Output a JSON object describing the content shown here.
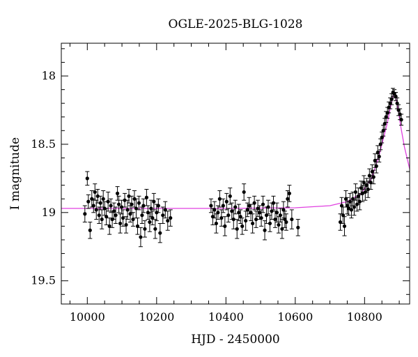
{
  "chart_data": {
    "type": "scatter",
    "title": "OGLE-2025-BLG-1028",
    "xlabel": "HJD - 2450000",
    "ylabel": "I magnitude",
    "xlim": [
      9925,
      10930
    ],
    "ylim": [
      19.67,
      17.76
    ],
    "y_inverted": true,
    "grid": false,
    "legend": "none",
    "x_ticks": [
      10000,
      10200,
      10400,
      10600,
      10800
    ],
    "y_ticks": [
      18,
      18.5,
      19,
      19.5
    ],
    "x_tick_labels": [
      "10000",
      "10200",
      "10400",
      "10600",
      "10800"
    ],
    "y_tick_labels": [
      "18",
      "18.5",
      "19",
      "19.5"
    ],
    "colors": {
      "points": "#000000",
      "model": "#e040e0"
    },
    "model": {
      "name": "",
      "baseline_mag": 18.97,
      "peak_time": 10885,
      "peak_mag": 18.13,
      "x": [
        9925,
        10400,
        10600,
        10700,
        10750,
        10790,
        10820,
        10840,
        10855,
        10865,
        10875,
        10883,
        10888,
        10895,
        10905,
        10915,
        10930
      ],
      "y": [
        18.97,
        18.97,
        18.965,
        18.95,
        18.92,
        18.86,
        18.75,
        18.6,
        18.45,
        18.35,
        18.23,
        18.14,
        18.14,
        18.22,
        18.38,
        18.52,
        18.68
      ]
    },
    "series": [
      {
        "name": "",
        "points": [
          [
            9993,
            19.01,
            0.06
          ],
          [
            10000,
            18.75,
            0.05
          ],
          [
            10003,
            18.92,
            0.05
          ],
          [
            10008,
            19.13,
            0.06
          ],
          [
            10013,
            18.9,
            0.06
          ],
          [
            10018,
            18.95,
            0.05
          ],
          [
            10022,
            18.85,
            0.06
          ],
          [
            10026,
            18.98,
            0.07
          ],
          [
            10030,
            18.88,
            0.05
          ],
          [
            10034,
            19.02,
            0.06
          ],
          [
            10038,
            18.93,
            0.05
          ],
          [
            10042,
            19.05,
            0.07
          ],
          [
            10046,
            18.9,
            0.06
          ],
          [
            10050,
            18.97,
            0.05
          ],
          [
            10055,
            19.03,
            0.06
          ],
          [
            10060,
            18.92,
            0.07
          ],
          [
            10064,
            19.1,
            0.06
          ],
          [
            10068,
            18.95,
            0.05
          ],
          [
            10072,
            19.05,
            0.06
          ],
          [
            10077,
            18.99,
            0.06
          ],
          [
            10082,
            19.02,
            0.06
          ],
          [
            10087,
            18.86,
            0.05
          ],
          [
            10091,
            18.94,
            0.06
          ],
          [
            10095,
            19.08,
            0.07
          ],
          [
            10099,
            18.96,
            0.05
          ],
          [
            10103,
            19.04,
            0.06
          ],
          [
            10108,
            18.91,
            0.05
          ],
          [
            10112,
            19.09,
            0.06
          ],
          [
            10116,
            18.98,
            0.07
          ],
          [
            10120,
            18.88,
            0.05
          ],
          [
            10124,
            19.01,
            0.06
          ],
          [
            10128,
            18.94,
            0.06
          ],
          [
            10132,
            19.05,
            0.05
          ],
          [
            10136,
            18.9,
            0.06
          ],
          [
            10141,
            18.97,
            0.07
          ],
          [
            10145,
            19.1,
            0.06
          ],
          [
            10149,
            18.93,
            0.05
          ],
          [
            10154,
            19.18,
            0.07
          ],
          [
            10158,
            19.02,
            0.06
          ],
          [
            10162,
            18.95,
            0.05
          ],
          [
            10166,
            19.12,
            0.06
          ],
          [
            10171,
            18.89,
            0.06
          ],
          [
            10175,
            19.0,
            0.05
          ],
          [
            10180,
            19.07,
            0.07
          ],
          [
            10184,
            18.97,
            0.06
          ],
          [
            10188,
            19.04,
            0.05
          ],
          [
            10192,
            18.92,
            0.06
          ],
          [
            10196,
            19.12,
            0.07
          ],
          [
            10200,
            19.0,
            0.06
          ],
          [
            10205,
            18.95,
            0.05
          ],
          [
            10210,
            19.15,
            0.07
          ],
          [
            10218,
            19.02,
            0.06
          ],
          [
            10225,
            18.98,
            0.06
          ],
          [
            10232,
            19.06,
            0.07
          ],
          [
            10240,
            19.04,
            0.06
          ],
          [
            10357,
            18.95,
            0.05
          ],
          [
            10362,
            19.03,
            0.06
          ],
          [
            10367,
            18.98,
            0.06
          ],
          [
            10372,
            19.08,
            0.07
          ],
          [
            10377,
            19.0,
            0.05
          ],
          [
            10382,
            18.9,
            0.06
          ],
          [
            10387,
            19.04,
            0.06
          ],
          [
            10392,
            18.95,
            0.05
          ],
          [
            10397,
            19.1,
            0.07
          ],
          [
            10402,
            18.92,
            0.06
          ],
          [
            10407,
            19.02,
            0.05
          ],
          [
            10412,
            18.88,
            0.06
          ],
          [
            10417,
            18.99,
            0.06
          ],
          [
            10422,
            19.05,
            0.07
          ],
          [
            10427,
            18.96,
            0.05
          ],
          [
            10432,
            19.12,
            0.07
          ],
          [
            10437,
            19.0,
            0.06
          ],
          [
            10442,
            19.03,
            0.05
          ],
          [
            10447,
            19.1,
            0.06
          ],
          [
            10452,
            18.85,
            0.06
          ],
          [
            10457,
            19.06,
            0.07
          ],
          [
            10462,
            18.98,
            0.05
          ],
          [
            10467,
            18.95,
            0.06
          ],
          [
            10472,
            19.0,
            0.06
          ],
          [
            10477,
            19.08,
            0.07
          ],
          [
            10482,
            18.93,
            0.05
          ],
          [
            10487,
            19.05,
            0.06
          ],
          [
            10492,
            18.97,
            0.06
          ],
          [
            10497,
            19.0,
            0.05
          ],
          [
            10502,
            19.04,
            0.06
          ],
          [
            10507,
            18.94,
            0.06
          ],
          [
            10512,
            19.13,
            0.07
          ],
          [
            10517,
            19.02,
            0.06
          ],
          [
            10522,
            18.96,
            0.05
          ],
          [
            10527,
            19.08,
            0.06
          ],
          [
            10532,
            18.99,
            0.06
          ],
          [
            10537,
            18.93,
            0.05
          ],
          [
            10542,
            19.05,
            0.06
          ],
          [
            10547,
            19.0,
            0.07
          ],
          [
            10552,
            19.09,
            0.06
          ],
          [
            10557,
            19.02,
            0.05
          ],
          [
            10562,
            19.12,
            0.07
          ],
          [
            10566,
            18.98,
            0.06
          ],
          [
            10570,
            19.05,
            0.06
          ],
          [
            10574,
            19.07,
            0.06
          ],
          [
            10578,
            18.9,
            0.06
          ],
          [
            10583,
            18.86,
            0.06
          ],
          [
            10590,
            19.05,
            0.07
          ],
          [
            10608,
            19.11,
            0.06
          ],
          [
            10730,
            19.07,
            0.06
          ],
          [
            10734,
            18.95,
            0.06
          ],
          [
            10738,
            19.02,
            0.06
          ],
          [
            10742,
            19.1,
            0.07
          ],
          [
            10746,
            18.9,
            0.06
          ],
          [
            10750,
            18.95,
            0.06
          ],
          [
            10754,
            18.97,
            0.05
          ],
          [
            10758,
            18.92,
            0.06
          ],
          [
            10762,
            18.98,
            0.06
          ],
          [
            10766,
            18.9,
            0.05
          ],
          [
            10770,
            18.96,
            0.06
          ],
          [
            10774,
            18.85,
            0.06
          ],
          [
            10778,
            18.94,
            0.05
          ],
          [
            10782,
            18.88,
            0.06
          ],
          [
            10786,
            18.92,
            0.06
          ],
          [
            10790,
            18.82,
            0.05
          ],
          [
            10794,
            18.86,
            0.06
          ],
          [
            10798,
            18.78,
            0.05
          ],
          [
            10802,
            18.85,
            0.06
          ],
          [
            10806,
            18.8,
            0.05
          ],
          [
            10810,
            18.83,
            0.06
          ],
          [
            10814,
            18.73,
            0.05
          ],
          [
            10818,
            18.78,
            0.05
          ],
          [
            10822,
            18.7,
            0.05
          ],
          [
            10826,
            18.74,
            0.05
          ],
          [
            10830,
            18.62,
            0.05
          ],
          [
            10834,
            18.66,
            0.05
          ],
          [
            10838,
            18.56,
            0.05
          ],
          [
            10842,
            18.59,
            0.04
          ],
          [
            10846,
            18.5,
            0.04
          ],
          [
            10850,
            18.45,
            0.04
          ],
          [
            10854,
            18.4,
            0.04
          ],
          [
            10858,
            18.35,
            0.04
          ],
          [
            10862,
            18.3,
            0.04
          ],
          [
            10866,
            18.27,
            0.04
          ],
          [
            10870,
            18.23,
            0.04
          ],
          [
            10874,
            18.2,
            0.04
          ],
          [
            10878,
            18.17,
            0.04
          ],
          [
            10882,
            18.12,
            0.03
          ],
          [
            10886,
            18.13,
            0.03
          ],
          [
            10890,
            18.15,
            0.03
          ],
          [
            10894,
            18.2,
            0.04
          ],
          [
            10898,
            18.25,
            0.04
          ],
          [
            10902,
            18.28,
            0.04
          ],
          [
            10906,
            18.32,
            0.04
          ]
        ]
      }
    ]
  }
}
